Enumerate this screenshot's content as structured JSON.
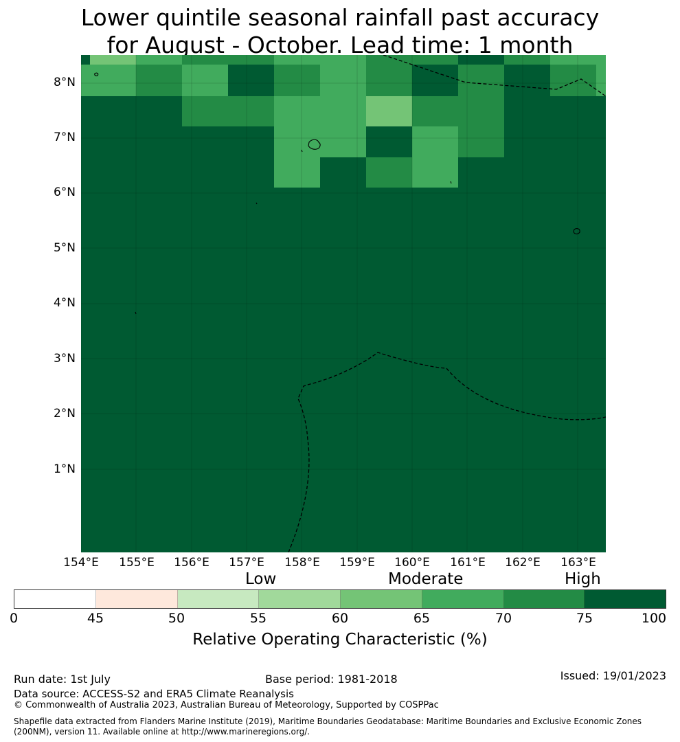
{
  "title_line1": "Lower quintile seasonal rainfall past accuracy",
  "title_line2": "for August - October. Lead time: 1 month",
  "map": {
    "latitude_labels": [
      "8°N",
      "7°N",
      "6°N",
      "5°N",
      "4°N",
      "3°N",
      "2°N",
      "1°N"
    ],
    "longitude_labels": [
      "154°E",
      "155°E",
      "156°E",
      "157°E",
      "158°E",
      "159°E",
      "160°E",
      "161°E",
      "162°E",
      "163°E"
    ]
  },
  "colorbar": {
    "categories": [
      "Low",
      "Moderate",
      "High"
    ],
    "ticks": [
      "0",
      "45",
      "50",
      "55",
      "60",
      "65",
      "70",
      "75",
      "100"
    ],
    "colors": [
      "#ffffff",
      "#fee8dc",
      "#c7e9c0",
      "#a1d99b",
      "#74c476",
      "#41ab5d",
      "#238b45",
      "#005a32"
    ],
    "label": "Relative Operating Characteristic (%)"
  },
  "footer": {
    "run_date": "Run date: 1st July",
    "base_period": "Base period: 1981-2018",
    "issued": "Issued: 19/01/2023",
    "data_source": "Data source: ACCESS-S2 and ERA5 Climate Reanalysis",
    "copyright": "© Commonwealth of Australia 2023, Australian Bureau of Meteorology, Supported by COSPPac",
    "shapefile_line1": "Shapefile data extracted from Flanders Marine Institute (2019), Maritime Boundaries Geodatabase: Maritime Boundaries and Exclusive Economic Zones",
    "shapefile_line2": "(200NM), version 11. Available online at http://www.marineregions.org/."
  }
}
